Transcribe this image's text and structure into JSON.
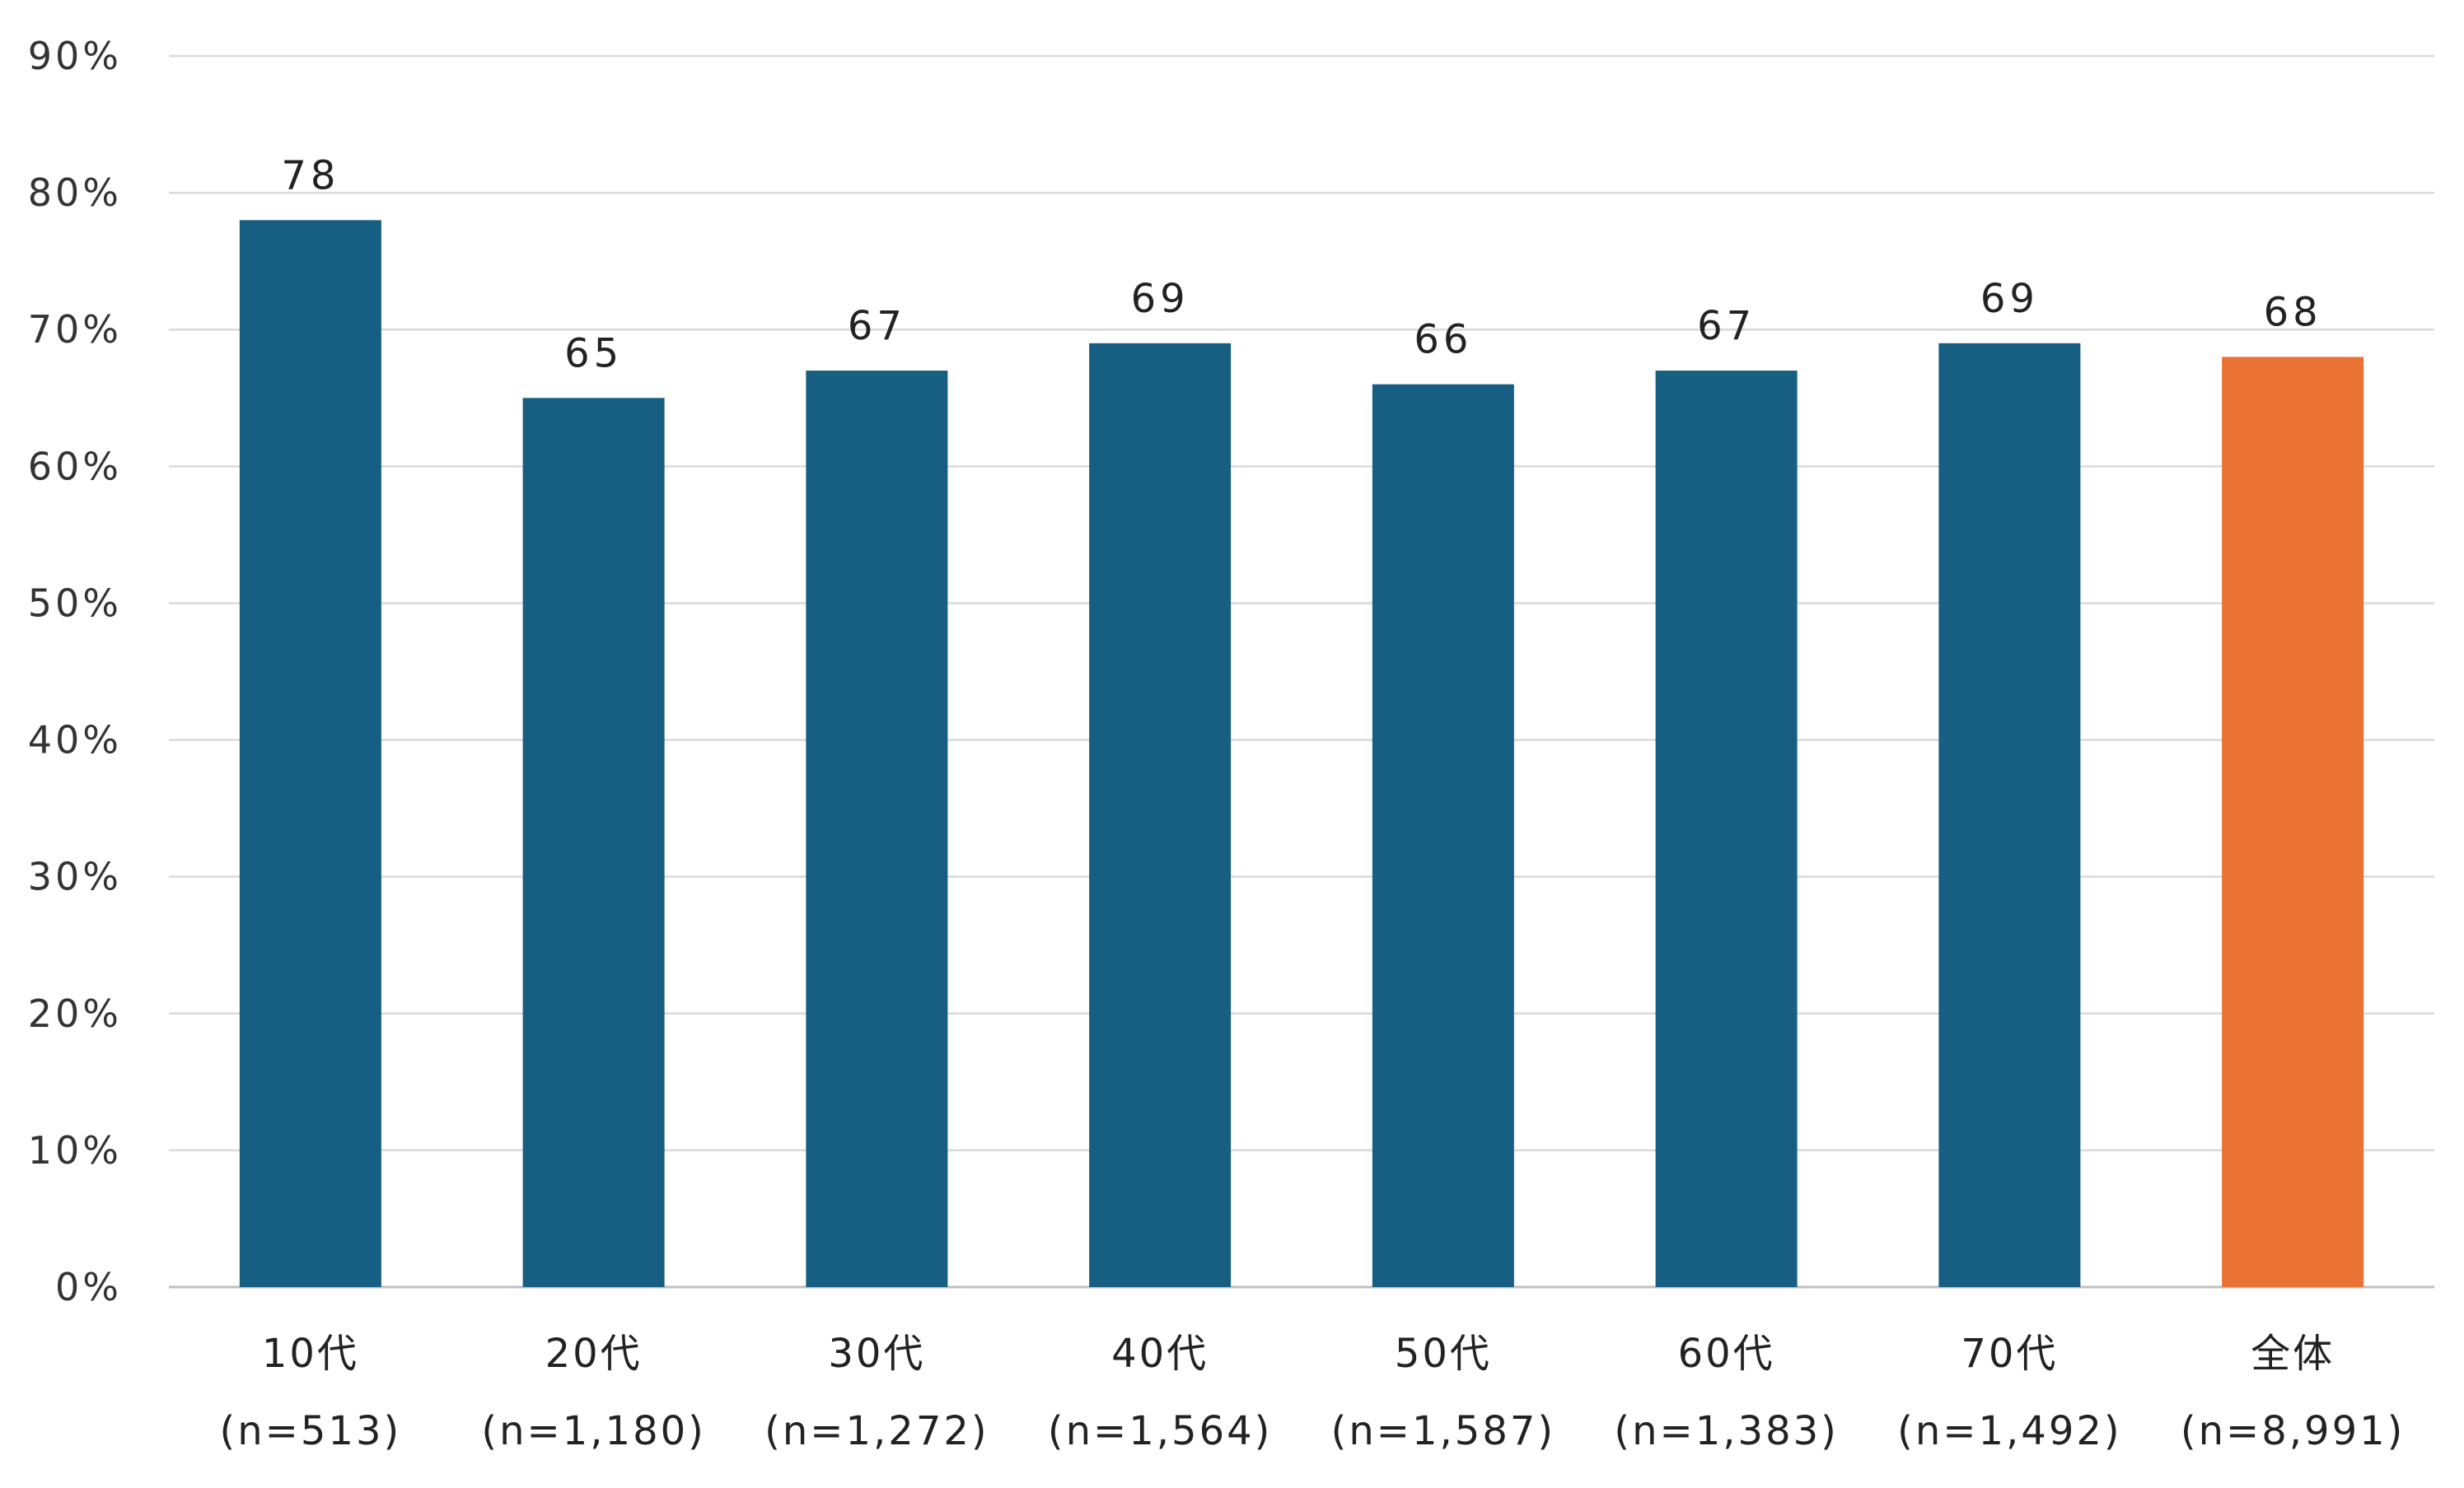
{
  "chart_data": {
    "type": "bar",
    "categories": [
      "10代",
      "20代",
      "30代",
      "40代",
      "50代",
      "60代",
      "70代",
      "全体"
    ],
    "category_sublabels": [
      "(n=513)",
      "(n=1,180)",
      "(n=1,272)",
      "(n=1,564)",
      "(n=1,587)",
      "(n=1,383)",
      "(n=1,492)",
      "(n=8,991)"
    ],
    "values": [
      78,
      65,
      67,
      69,
      66,
      67,
      69,
      68
    ],
    "data_labels": [
      "78",
      "65",
      "67",
      "69",
      "66",
      "67",
      "69",
      "68"
    ],
    "ylim": [
      0,
      90
    ],
    "yticks": [
      0,
      10,
      20,
      30,
      40,
      50,
      60,
      70,
      80,
      90
    ],
    "ytick_labels": [
      "0%",
      "10%",
      "20%",
      "30%",
      "40%",
      "50%",
      "60%",
      "70%",
      "80%",
      "90%"
    ],
    "grid": true,
    "legend": "none",
    "colors": {
      "bar": "#175f82",
      "highlight_bar": "#e97234",
      "highlight_index": 7
    }
  }
}
